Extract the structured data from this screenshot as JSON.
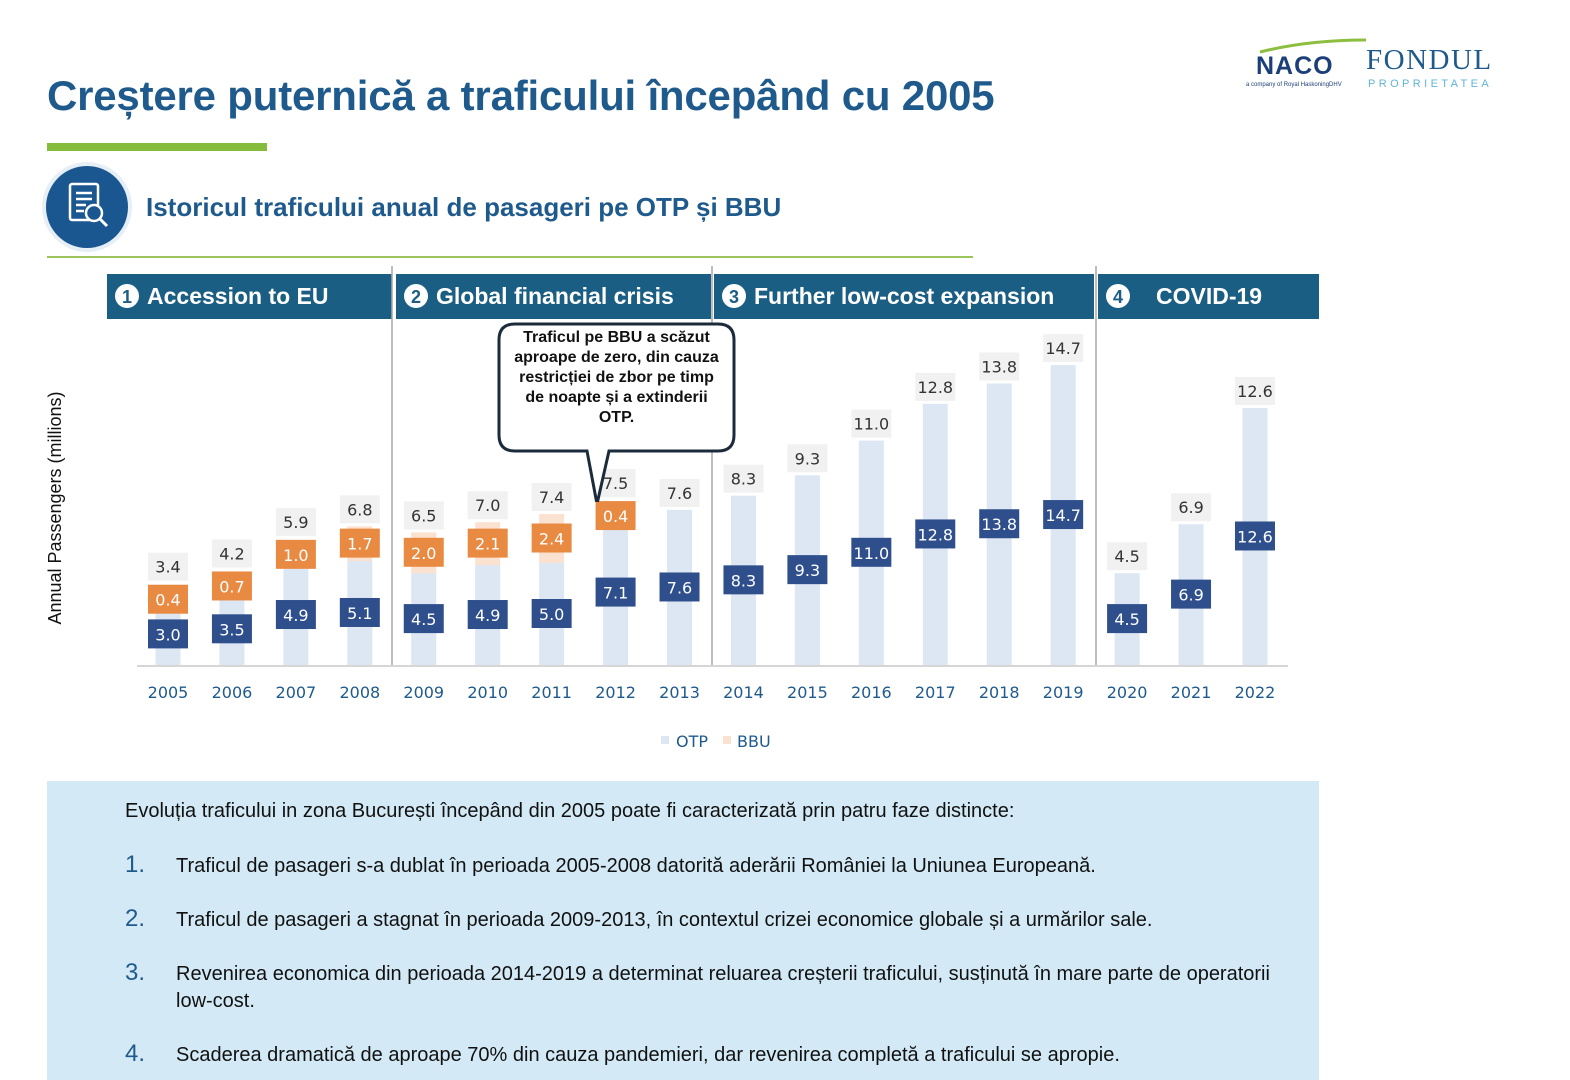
{
  "header": {
    "title": "Creștere puternică a traficului începând cu 2005",
    "naco_logo_text": "NACO",
    "naco_logo_subtext": "a company of Royal HaskoningDHV",
    "fondul_logo_text": "FONDUL",
    "fondul_logo_subtext": "PROPRIETATEA"
  },
  "section": {
    "heading": "Istoricul traficului anual de pasageri pe OTP și BBU",
    "icon": "document-search-icon"
  },
  "phases": [
    {
      "number": "1",
      "label": "Accession to EU"
    },
    {
      "number": "2",
      "label": "Global financial crisis"
    },
    {
      "number": "3",
      "label": "Further low-cost expansion"
    },
    {
      "number": "4",
      "label": "COVID-19"
    }
  ],
  "callout": {
    "text": "Traficul pe BBU a scăzut aproape de zero, din cauza restricției de zbor pe timp de noapte și a extinderii OTP."
  },
  "chart_data": {
    "type": "bar",
    "stacked": true,
    "categories": [
      "2005",
      "2006",
      "2007",
      "2008",
      "2009",
      "2010",
      "2011",
      "2012",
      "2013",
      "2014",
      "2015",
      "2016",
      "2017",
      "2018",
      "2019",
      "2020",
      "2021",
      "2022"
    ],
    "series": [
      {
        "name": "OTP",
        "color": "#dde6f3",
        "label_color": "#2e4f8b",
        "values": [
          3.0,
          3.5,
          4.9,
          5.1,
          4.5,
          4.9,
          5.0,
          7.1,
          7.6,
          8.3,
          9.3,
          11.0,
          12.8,
          13.8,
          14.7,
          4.5,
          6.9,
          12.6
        ]
      },
      {
        "name": "BBU",
        "color": "#fbe1cf",
        "label_color": "#e98a43",
        "values": [
          0.4,
          0.7,
          1.0,
          1.7,
          2.0,
          2.1,
          2.4,
          0.4,
          null,
          null,
          null,
          null,
          null,
          null,
          null,
          null,
          null,
          null
        ]
      }
    ],
    "totals": [
      3.4,
      4.2,
      5.9,
      6.8,
      6.5,
      7.0,
      7.4,
      7.5,
      7.6,
      8.3,
      9.3,
      11.0,
      12.8,
      13.8,
      14.7,
      4.5,
      6.9,
      12.6
    ],
    "ylabel": "Annual Passengers (millions)",
    "xlabel": "",
    "ylim": [
      0,
      15
    ],
    "legend_position": "bottom",
    "phase_dividers_after": [
      "2008",
      "2013",
      "2019"
    ]
  },
  "info": {
    "intro": "Evoluția traficului in zona București începând din 2005 poate fi caracterizată prin patru faze distincte:",
    "items": [
      {
        "num": "1.",
        "text": "Traficul de pasageri s-a dublat în perioada 2005-2008 datorită aderării României la Uniunea Europeană."
      },
      {
        "num": "2.",
        "text": "Traficul de pasageri a stagnat în perioada 2009-2013, în contextul crizei economice globale și a urmărilor sale."
      },
      {
        "num": "3.",
        "text": "Revenirea economica din perioada 2014-2019 a determinat reluarea creșterii traficului, susținută în mare parte de operatorii low-cost."
      },
      {
        "num": "4.",
        "text": "Scaderea dramatică de aproape 70% din cauza pandemieri, dar revenirea completă a traficului se apropie."
      }
    ]
  }
}
